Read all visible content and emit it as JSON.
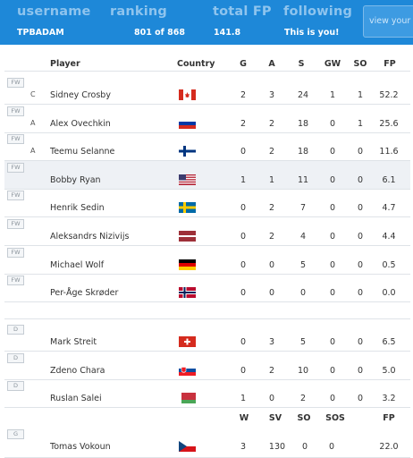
{
  "header": {
    "labels": {
      "username": "username",
      "ranking": "ranking",
      "total_fp": "total FP",
      "following": "following"
    },
    "values": {
      "username": "TPBADAM",
      "ranking": "801 of 868",
      "total_fp": "141.8",
      "following": "This is you!"
    },
    "view_button": "view your"
  },
  "skater_columns": {
    "player": "Player",
    "country": "Country",
    "g": "G",
    "a": "A",
    "s": "S",
    "gw": "GW",
    "so": "SO",
    "fp": "FP"
  },
  "forwards": [
    {
      "pos": "FW",
      "role": "C",
      "name": "Sidney Crosby",
      "flag": "canada-flag",
      "g": "2",
      "a": "3",
      "s": "24",
      "gw": "1",
      "so": "1",
      "fp": "52.2"
    },
    {
      "pos": "FW",
      "role": "A",
      "name": "Alex Ovechkin",
      "flag": "russia-flag",
      "g": "2",
      "a": "2",
      "s": "18",
      "gw": "0",
      "so": "1",
      "fp": "25.6"
    },
    {
      "pos": "FW",
      "role": "A",
      "name": "Teemu Selanne",
      "flag": "finland-flag",
      "g": "0",
      "a": "2",
      "s": "18",
      "gw": "0",
      "so": "0",
      "fp": "11.6"
    },
    {
      "pos": "FW",
      "role": "",
      "name": "Bobby Ryan",
      "flag": "usa-flag",
      "g": "1",
      "a": "1",
      "s": "11",
      "gw": "0",
      "so": "0",
      "fp": "6.1"
    },
    {
      "pos": "FW",
      "role": "",
      "name": "Henrik Sedin",
      "flag": "sweden-flag",
      "g": "0",
      "a": "2",
      "s": "7",
      "gw": "0",
      "so": "0",
      "fp": "4.7"
    },
    {
      "pos": "FW",
      "role": "",
      "name": "Aleksandrs Nizivijs",
      "flag": "latvia-flag",
      "g": "0",
      "a": "2",
      "s": "4",
      "gw": "0",
      "so": "0",
      "fp": "4.4"
    },
    {
      "pos": "FW",
      "role": "",
      "name": "Michael Wolf",
      "flag": "germany-flag",
      "g": "0",
      "a": "0",
      "s": "5",
      "gw": "0",
      "so": "0",
      "fp": "0.5"
    },
    {
      "pos": "FW",
      "role": "",
      "name": "Per-Åge Skrøder",
      "flag": "norway-flag",
      "g": "0",
      "a": "0",
      "s": "0",
      "gw": "0",
      "so": "0",
      "fp": "0.0"
    }
  ],
  "defense": [
    {
      "pos": "D",
      "role": "",
      "name": "Mark Streit",
      "flag": "switzerland-flag",
      "g": "0",
      "a": "3",
      "s": "5",
      "gw": "0",
      "so": "0",
      "fp": "6.5"
    },
    {
      "pos": "D",
      "role": "",
      "name": "Zdeno Chara",
      "flag": "slovakia-flag",
      "g": "0",
      "a": "2",
      "s": "10",
      "gw": "0",
      "so": "0",
      "fp": "5.0"
    },
    {
      "pos": "D",
      "role": "",
      "name": "Ruslan Salei",
      "flag": "belarus-flag",
      "g": "1",
      "a": "0",
      "s": "2",
      "gw": "0",
      "so": "0",
      "fp": "3.2"
    }
  ],
  "goalie_columns": {
    "w": "W",
    "sv": "SV",
    "so": "SO",
    "sos": "SOS",
    "fp": "FP"
  },
  "goalies": [
    {
      "pos": "G",
      "name": "Tomas Vokoun",
      "flag": "czech-flag",
      "w": "3",
      "sv": "130",
      "so": "0",
      "sos": "0",
      "fp": "22.0"
    }
  ],
  "colors": {
    "header_bg": "#1e88d8",
    "header_label": "#8ec4ee",
    "row_border": "#dfe3e8",
    "selected_row": "#eef1f5"
  }
}
